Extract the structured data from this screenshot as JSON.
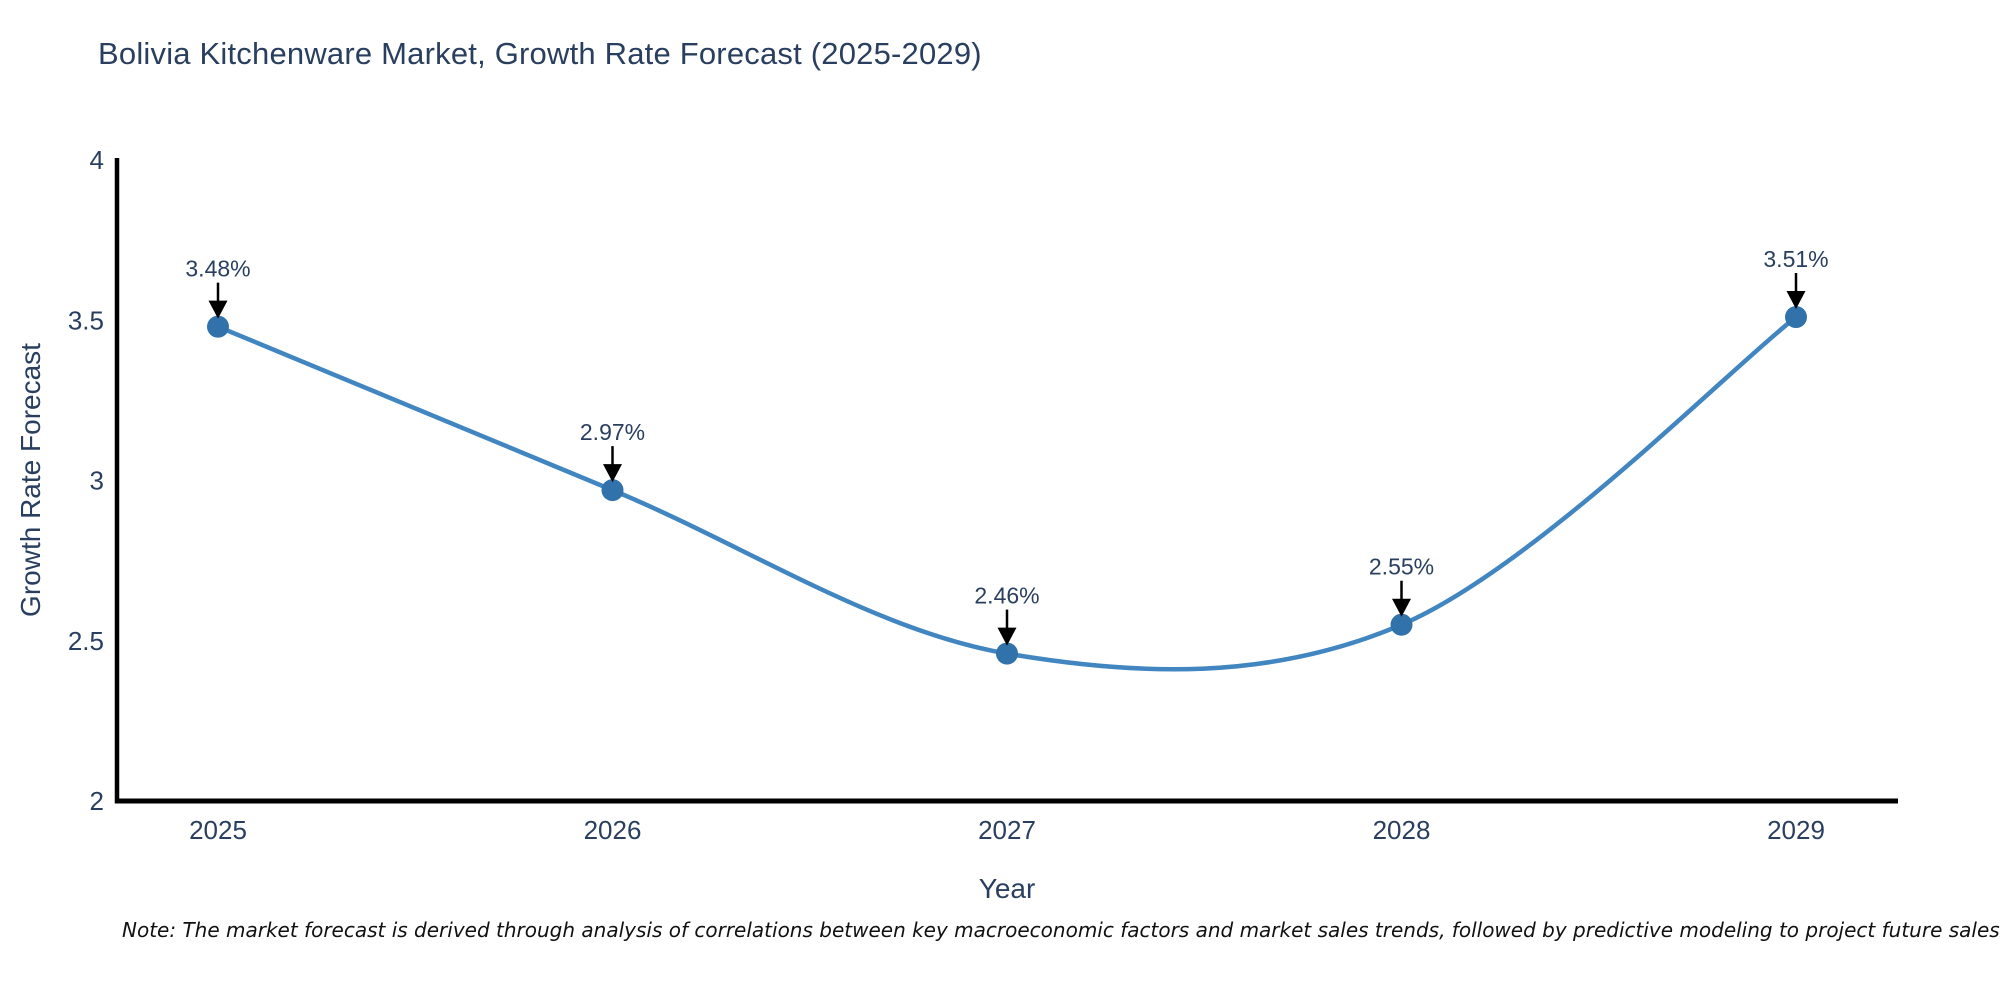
{
  "chart_data": {
    "type": "line",
    "title": "Bolivia Kitchenware Market, Growth Rate Forecast (2025-2029)",
    "xlabel": "Year",
    "ylabel": "Growth Rate Forecast",
    "categories": [
      "2025",
      "2026",
      "2027",
      "2028",
      "2029"
    ],
    "values": [
      3.48,
      2.97,
      2.46,
      2.55,
      3.51
    ],
    "point_labels": [
      "3.48%",
      "2.97%",
      "2.46%",
      "2.55%",
      "3.51%"
    ],
    "ylim": [
      2,
      4
    ],
    "yticks": [
      2,
      2.5,
      3,
      3.5,
      4
    ],
    "ytick_labels": [
      "2",
      "2.5",
      "3",
      "3.5",
      "4"
    ],
    "line_shape": "spline",
    "grid": false,
    "legend": "none",
    "colors": {
      "line": "#4186c0",
      "marker": "#3172ab",
      "axis": "#000000",
      "tick_text": "#2a3f5f",
      "annotation_text": "#2a3f5f",
      "annotation_arrow": "#000000",
      "background": "#ffffff"
    }
  },
  "note": "Note: The market forecast is derived through analysis of correlations between key macroeconomic factors and market sales trends, followed by predictive modeling to project future sales"
}
